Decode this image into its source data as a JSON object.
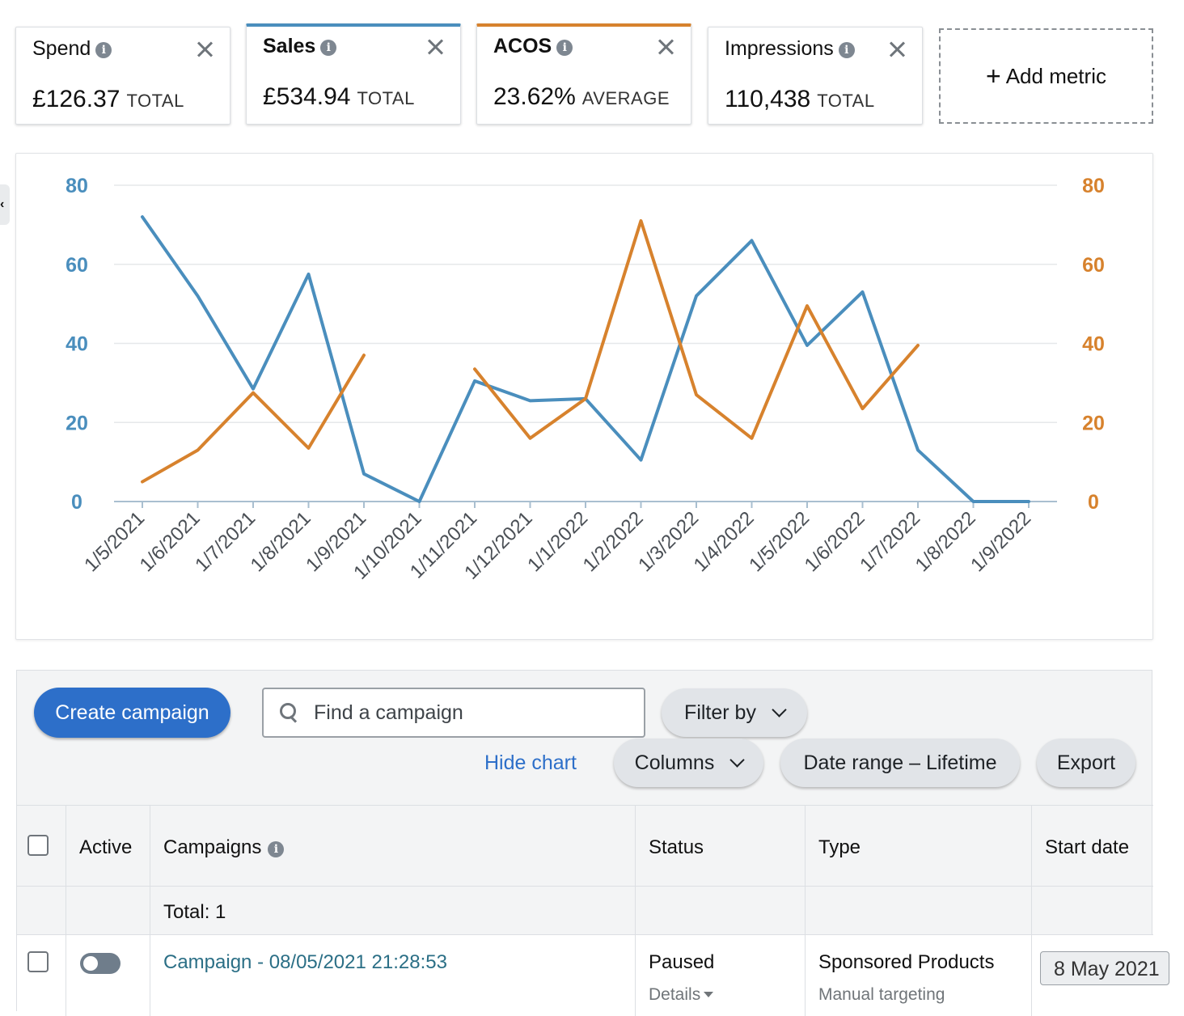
{
  "metrics": [
    {
      "name": "Spend",
      "value": "£126.37",
      "unit": "TOTAL"
    },
    {
      "name": "Sales",
      "value": "£534.94",
      "unit": "TOTAL"
    },
    {
      "name": "ACOS",
      "value": "23.62%",
      "unit": "AVERAGE"
    },
    {
      "name": "Impressions",
      "value": "110,438",
      "unit": "TOTAL"
    }
  ],
  "add_metric_label": "Add metric",
  "colors": {
    "sales": "#4a8ebd",
    "acos": "#d7822d",
    "primary": "#2d6fc9"
  },
  "chart_data": {
    "type": "line",
    "x": [
      "1/5/2021",
      "1/6/2021",
      "1/7/2021",
      "1/8/2021",
      "1/9/2021",
      "1/10/2021",
      "1/11/2021",
      "1/12/2021",
      "1/1/2022",
      "1/2/2022",
      "1/3/2022",
      "1/4/2022",
      "1/5/2022",
      "1/6/2022",
      "1/7/2022",
      "1/8/2022",
      "1/9/2022"
    ],
    "series": [
      {
        "name": "Sales",
        "axis": "left",
        "color": "#4a8ebd",
        "values": [
          72,
          52,
          28.5,
          57.5,
          7,
          0,
          30.5,
          25.5,
          26,
          10.5,
          52,
          66,
          39.5,
          53,
          13,
          0,
          0
        ]
      },
      {
        "name": "ACOS",
        "axis": "right",
        "color": "#d7822d",
        "values": [
          5,
          13,
          27.5,
          13.5,
          37,
          null,
          33.5,
          16,
          26,
          71,
          27,
          16,
          49.5,
          23.5,
          39.5,
          null,
          null
        ]
      }
    ],
    "y_left": {
      "ticks": [
        "80",
        "60",
        "40",
        "20",
        "0"
      ],
      "range": [
        0,
        80
      ]
    },
    "y_right": {
      "ticks": [
        "80",
        "60",
        "40",
        "20",
        "0"
      ],
      "range": [
        0,
        80
      ]
    },
    "grid": true
  },
  "toolbar": {
    "create_label": "Create campaign",
    "search_placeholder": "Find a campaign",
    "filter_label": "Filter by",
    "hide_chart_label": "Hide chart",
    "columns_label": "Columns",
    "date_range_label": "Date range – Lifetime",
    "export_label": "Export"
  },
  "table": {
    "headers": [
      "Active",
      "Campaigns",
      "Status",
      "Type",
      "Start date"
    ],
    "total_label": "Total: 1",
    "rows": [
      {
        "campaign": "Campaign - 08/05/2021 21:28:53",
        "status": "Paused",
        "details": "Details",
        "type": "Sponsored Products",
        "type_sub": "Manual targeting",
        "start_date": "8 May 2021"
      }
    ]
  }
}
